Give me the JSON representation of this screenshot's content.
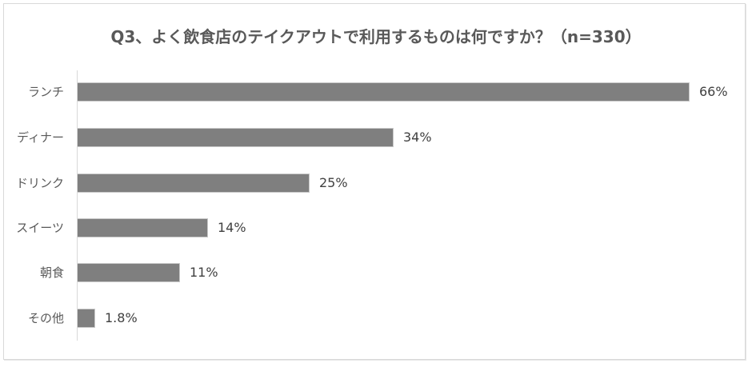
{
  "chart_data": {
    "type": "bar",
    "orientation": "horizontal",
    "title": "Q3、よく飲食店のテイクアウトで利用するものは何ですか？（n=330）",
    "categories": [
      "ランチ",
      "ディナー",
      "ドリンク",
      "スイーツ",
      "朝食",
      "その他"
    ],
    "values": [
      66,
      34,
      25,
      14,
      11,
      1.8
    ],
    "value_labels": [
      "66%",
      "34%",
      "25%",
      "14%",
      "11%",
      "1.8%"
    ],
    "xlabel": "",
    "ylabel": "",
    "xlim": [
      0,
      66
    ],
    "grid": false,
    "legend": null,
    "bar_color": "#7f7f7f",
    "unit": "%"
  },
  "rows": [
    {
      "label": "ランチ",
      "value_label": "66%"
    },
    {
      "label": "ディナー",
      "value_label": "34%"
    },
    {
      "label": "ドリンク",
      "value_label": "25%"
    },
    {
      "label": "スイーツ",
      "value_label": "14%"
    },
    {
      "label": "朝食",
      "value_label": "11%"
    },
    {
      "label": "その他",
      "value_label": "1.8%"
    }
  ]
}
